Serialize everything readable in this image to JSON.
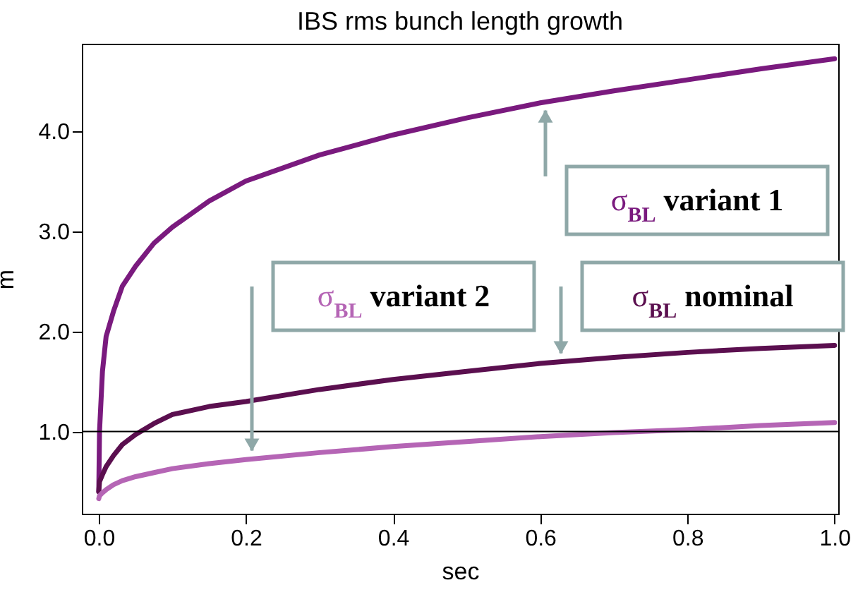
{
  "chart_data": {
    "type": "line",
    "title": "IBS rms bunch length growth",
    "xlabel": "sec",
    "ylabel": "m",
    "xlim": [
      -0.023,
      1.005
    ],
    "ylim": [
      0.18,
      4.87
    ],
    "xticks": [
      {
        "value": 0,
        "label": "0.0"
      },
      {
        "value": 0.2,
        "label": "0.2"
      },
      {
        "value": 0.4,
        "label": "0.4"
      },
      {
        "value": 0.6,
        "label": "0.6"
      },
      {
        "value": 0.8,
        "label": "0.8"
      },
      {
        "value": 1,
        "label": "1.0"
      }
    ],
    "yticks": [
      {
        "value": 1,
        "label": "1.0"
      },
      {
        "value": 2,
        "label": "2.0"
      },
      {
        "value": 3,
        "label": "3.0"
      },
      {
        "value": 4,
        "label": "4.0"
      }
    ],
    "grid": false,
    "marker": "none",
    "line_style": "solid",
    "x": [
      0,
      0.001,
      0.005,
      0.01,
      0.02,
      0.032,
      0.05,
      0.075,
      0.1,
      0.15,
      0.2,
      0.3,
      0.4,
      0.5,
      0.6,
      0.7,
      0.8,
      0.9,
      1.0
    ],
    "series": [
      {
        "color": "#7a1a7e",
        "values": [
          0.4,
          1.0,
          1.6,
          1.95,
          2.2,
          2.45,
          2.65,
          2.88,
          3.04,
          3.3,
          3.5,
          3.76,
          3.96,
          4.13,
          4.28,
          4.4,
          4.51,
          4.62,
          4.72
        ]
      },
      {
        "color": "#5b0f4f",
        "values": [
          0.4,
          0.5,
          0.57,
          0.65,
          0.76,
          0.87,
          0.97,
          1.08,
          1.17,
          1.25,
          1.3,
          1.42,
          1.52,
          1.6,
          1.68,
          1.74,
          1.79,
          1.83,
          1.86
        ]
      },
      {
        "color": "#b565b5",
        "values": [
          0.33,
          0.36,
          0.39,
          0.42,
          0.47,
          0.51,
          0.55,
          0.59,
          0.63,
          0.68,
          0.72,
          0.79,
          0.85,
          0.9,
          0.95,
          0.99,
          1.02,
          1.06,
          1.09
        ]
      }
    ],
    "ref_lines": [
      {
        "axis": "y",
        "value": 1,
        "color": "#000000"
      }
    ],
    "annotations": [
      "σ$_{BL}$ variant 1",
      "σ$_{BL}$ nominal",
      "σ$_{BL}$ variant 2"
    ]
  }
}
